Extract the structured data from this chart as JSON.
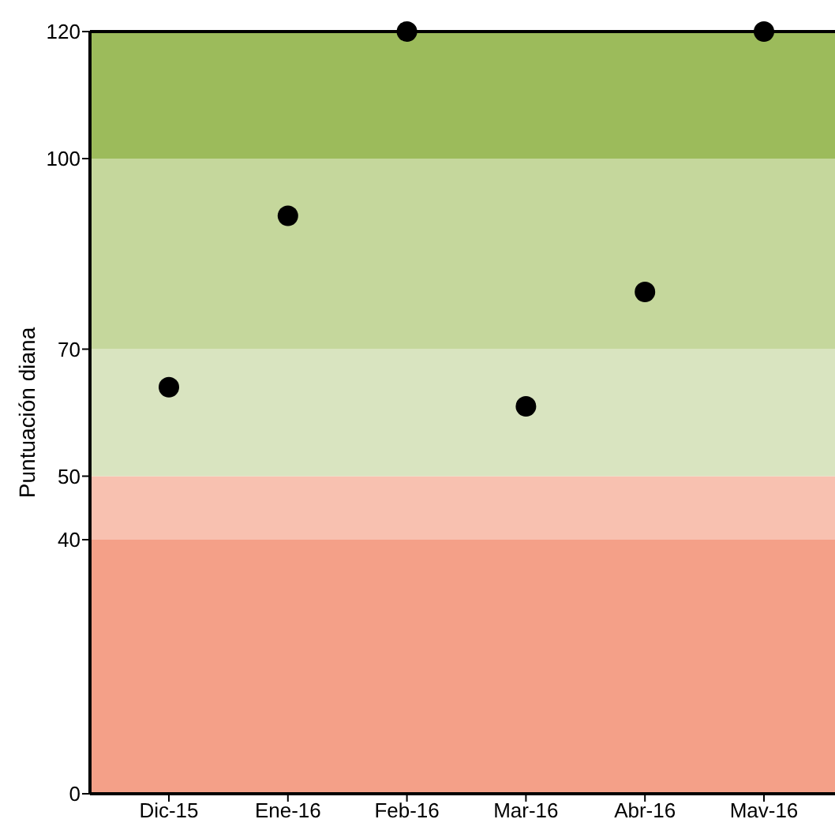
{
  "chart_data": {
    "type": "scatter",
    "ylabel": "Puntuación diana",
    "categories": [
      "Dic-15",
      "Ene-16",
      "Feb-16",
      "Mar-16",
      "Abr-16",
      "Mav-16"
    ],
    "series": [
      {
        "color": "#000000",
        "values": [
          64,
          91,
          120,
          61,
          79,
          120
        ]
      }
    ],
    "marker": "circle",
    "ylim": [
      0,
      120
    ],
    "yticks": [
      0,
      40,
      50,
      70,
      100,
      120
    ],
    "bands": [
      {
        "axis": "y",
        "from": 0,
        "to": 40,
        "color": "#f4a088"
      },
      {
        "axis": "y",
        "from": 40,
        "to": 50,
        "color": "#f8c1b0"
      },
      {
        "axis": "y",
        "from": 50,
        "to": 70,
        "color": "#d9e4c0"
      },
      {
        "axis": "y",
        "from": 70,
        "to": 100,
        "color": "#c5d79c"
      },
      {
        "axis": "y",
        "from": 100,
        "to": 120,
        "color": "#9cbb5b"
      }
    ]
  }
}
